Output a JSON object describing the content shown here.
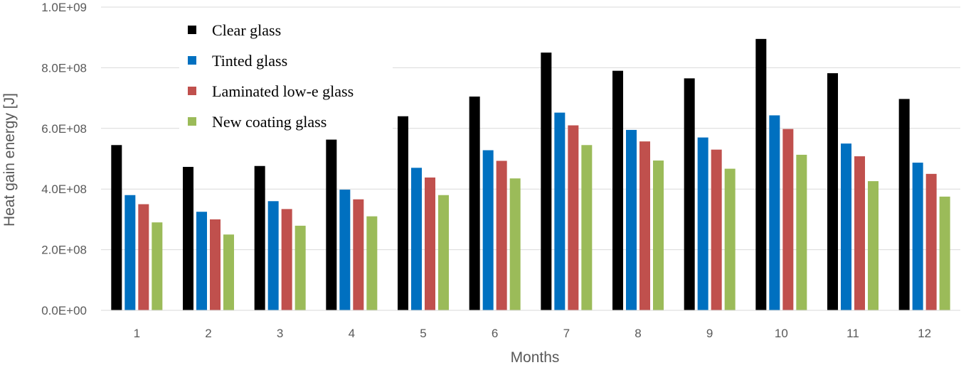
{
  "chart_data": {
    "type": "bar",
    "title": "",
    "xlabel": "Months",
    "ylabel": "Heat gain energy [J]",
    "ylim": [
      0,
      1000000000
    ],
    "yticks": [
      0,
      200000000,
      400000000,
      600000000,
      800000000,
      1000000000
    ],
    "ytick_labels": [
      "0.0E+00",
      "2.0E+08",
      "4.0E+08",
      "6.0E+08",
      "8.0E+08",
      "1.0E+09"
    ],
    "categories": [
      "1",
      "2",
      "3",
      "4",
      "5",
      "6",
      "7",
      "8",
      "9",
      "10",
      "11",
      "12"
    ],
    "grid": true,
    "legend_position": "top-left",
    "series": [
      {
        "name": "Clear glass",
        "color": "#000000",
        "values": [
          545000000,
          473000000,
          476000000,
          563000000,
          640000000,
          705000000,
          850000000,
          790000000,
          765000000,
          895000000,
          782000000,
          697000000
        ]
      },
      {
        "name": "Tinted glass",
        "color": "#0070c0",
        "values": [
          380000000,
          325000000,
          360000000,
          398000000,
          470000000,
          528000000,
          652000000,
          595000000,
          570000000,
          643000000,
          550000000,
          487000000
        ]
      },
      {
        "name": "Laminated low-e glass",
        "color": "#c0504d",
        "values": [
          350000000,
          300000000,
          334000000,
          366000000,
          438000000,
          493000000,
          610000000,
          557000000,
          530000000,
          598000000,
          508000000,
          450000000
        ]
      },
      {
        "name": "New coating glass",
        "color": "#9bbb59",
        "values": [
          290000000,
          250000000,
          279000000,
          310000000,
          380000000,
          435000000,
          545000000,
          494000000,
          467000000,
          513000000,
          426000000,
          375000000
        ]
      }
    ]
  }
}
